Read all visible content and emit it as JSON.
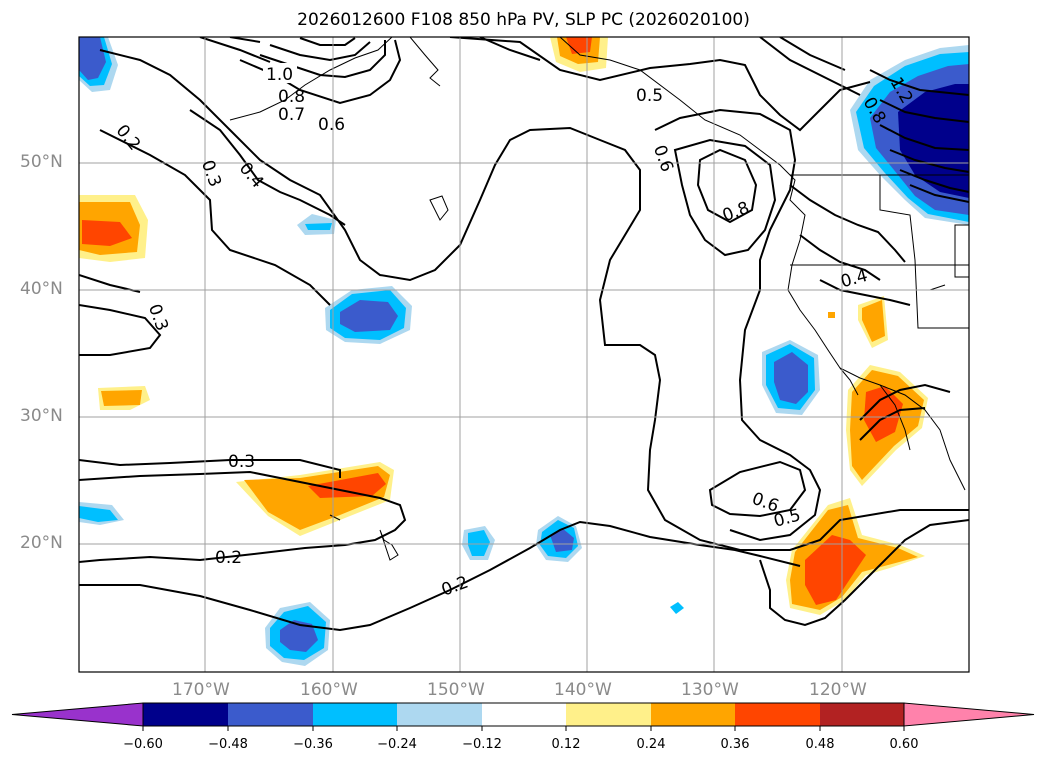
{
  "title": "2026012600 F108 850 hPa PV, SLP PC (2026020100)",
  "lat_labels": [
    "50°N",
    "40°N",
    "30°N",
    "20°N"
  ],
  "lon_labels": [
    "170°W",
    "160°W",
    "150°W",
    "140°W",
    "130°W",
    "120°W"
  ],
  "contour_labels": [
    "1.0",
    "0.8",
    "0.7",
    "0.6",
    "0.2",
    "0.3",
    "0.4",
    "0.3",
    "0.5",
    "0.6",
    "0.8",
    "0.4",
    "1.2",
    "0.8",
    "0.3",
    "0.2",
    "0.2",
    "0.6",
    "0.5"
  ],
  "colorbar": {
    "colors": [
      "#9932cc",
      "#00008b",
      "#3b5bcc",
      "#00bfff",
      "#add8f0",
      "#ffffff",
      "#fff08a",
      "#ffa500",
      "#ff4500",
      "#b22222",
      "#ff82ab"
    ],
    "tick_labels": [
      "−0.60",
      "−0.48",
      "−0.36",
      "−0.24",
      "−0.12",
      "0.12",
      "0.24",
      "0.36",
      "0.48",
      "0.60"
    ]
  }
}
